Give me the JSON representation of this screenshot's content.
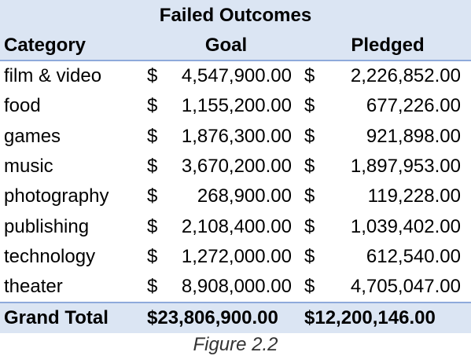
{
  "title": "Failed Outcomes",
  "headers": {
    "category": "Category",
    "goal": "Goal",
    "pledged": "Pledged"
  },
  "currency_symbol": "$",
  "rows": [
    {
      "category": "film & video",
      "goal": "4,547,900.00",
      "pledged": "2,226,852.00"
    },
    {
      "category": "food",
      "goal": "1,155,200.00",
      "pledged": "677,226.00"
    },
    {
      "category": "games",
      "goal": "1,876,300.00",
      "pledged": "921,898.00"
    },
    {
      "category": "music",
      "goal": "3,670,200.00",
      "pledged": "1,897,953.00"
    },
    {
      "category": "photography",
      "goal": "268,900.00",
      "pledged": "119,228.00"
    },
    {
      "category": "publishing",
      "goal": "2,108,400.00",
      "pledged": "1,039,402.00"
    },
    {
      "category": "technology",
      "goal": "1,272,000.00",
      "pledged": "612,540.00"
    },
    {
      "category": "theater",
      "goal": "8,908,000.00",
      "pledged": "4,705,047.00"
    }
  ],
  "total": {
    "label": "Grand Total",
    "goal": "$23,806,900.00",
    "pledged": "$12,200,146.00"
  },
  "caption": "Figure 2.2",
  "colors": {
    "header_fill": "#dbe5f3",
    "rule": "#8eaadb"
  }
}
